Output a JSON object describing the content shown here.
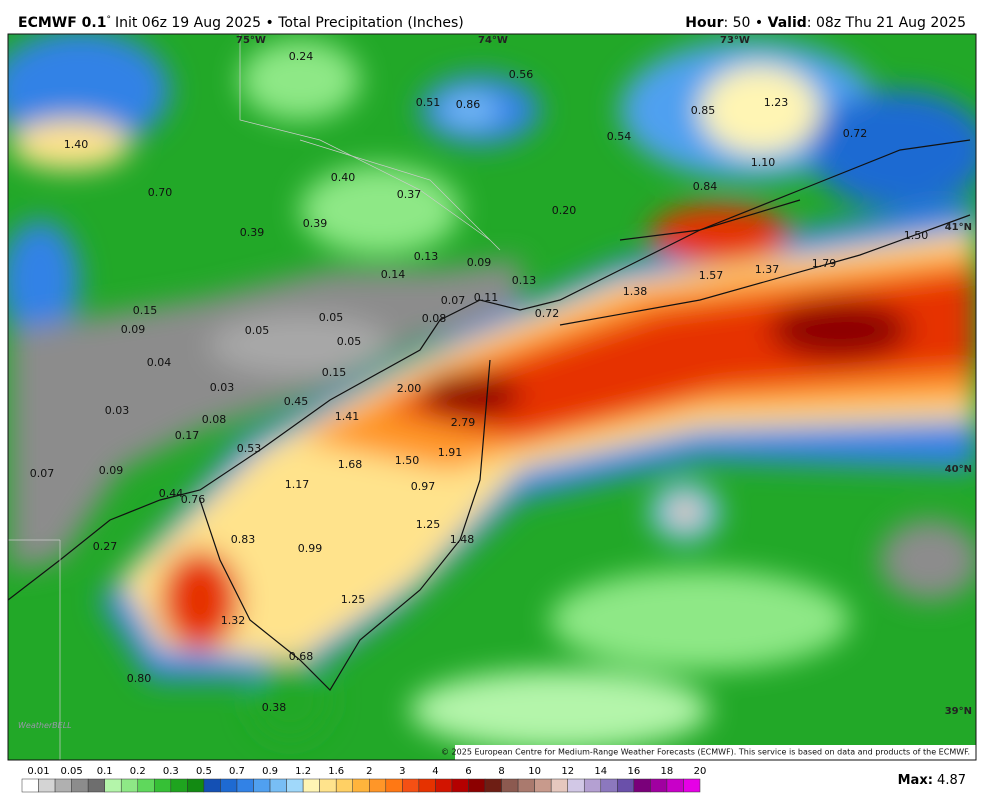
{
  "header": {
    "model": "ECMWF 0.1",
    "degree": "°",
    "init": "Init 06z 19 Aug 2025 • Total Precipitation (Inches)",
    "hour_label": "Hour",
    "hour_value": ": 50 •",
    "valid_label": "Valid",
    "valid_value": ": 08z Thu 21 Aug 2025"
  },
  "map": {
    "gridlabels": [
      "75°W",
      "74°W",
      "73°W",
      "41°N",
      "40°N",
      "39°N"
    ],
    "labels": [
      "0.24",
      "0.56",
      "0.51",
      "0.86",
      "0.54",
      "0.85",
      "1.23",
      "0.72",
      "1.40",
      "0.70",
      "0.40",
      "0.37",
      "0.84",
      "1.10",
      "0.20",
      "0.39",
      "0.39",
      "0.14",
      "0.13",
      "0.09",
      "0.13",
      "0.07",
      "0.11",
      "1.57",
      "1.37",
      "1.79",
      "1.50",
      "1.38",
      "0.72",
      "0.08",
      "0.15",
      "0.09",
      "0.05",
      "0.05",
      "0.05",
      "0.04",
      "0.15",
      "0.03",
      "2.00",
      "0.03",
      "0.45",
      "1.41",
      "0.08",
      "2.79",
      "0.17",
      "0.53",
      "1.91",
      "1.68",
      "1.50",
      "0.07",
      "0.09",
      "1.17",
      "0.97",
      "0.44",
      "0.76",
      "1.25",
      "1.48",
      "0.27",
      "0.83",
      "0.99",
      "1.25",
      "1.32",
      "0.68",
      "0.80",
      "0.38"
    ],
    "logo": "WeatherBELL",
    "credit": "© 2025 European Centre for Medium-Range Weather Forecasts (ECMWF). This service is based on data and products of the ECMWF."
  },
  "colorbar": {
    "labels": [
      "0.01",
      "0.05",
      "0.1",
      "0.2",
      "0.3",
      "0.5",
      "0.7",
      "0.9",
      "1.2",
      "1.6",
      "2",
      "3",
      "4",
      "6",
      "8",
      "10",
      "12",
      "14",
      "16",
      "18",
      "20"
    ],
    "colors": [
      "#ffffff",
      "#d4d4d4",
      "#b0b0b0",
      "#8c8c8c",
      "#6e6e6e",
      "#b4f5aa",
      "#8ee886",
      "#5fd85c",
      "#36c036",
      "#1fa41f",
      "#128a12",
      "#1450b4",
      "#1e6ad2",
      "#3282e6",
      "#50a0f0",
      "#78bef5",
      "#a0d8fa",
      "#fff5b4",
      "#ffe38c",
      "#ffd064",
      "#ffb43c",
      "#ff9628",
      "#ff7814",
      "#f55014",
      "#e63200",
      "#d21400",
      "#b40000",
      "#8c0000",
      "#6e1e14",
      "#8c5a50",
      "#aa7a6e",
      "#c89a8c",
      "#e6c8be",
      "#d2c8e6",
      "#b4a0d2",
      "#8c78be",
      "#6a50aa",
      "#7a007a",
      "#a000a0",
      "#c800c8",
      "#e600e6"
    ]
  },
  "footer": {
    "max_label": "Max:",
    "max_value": "4.87"
  }
}
